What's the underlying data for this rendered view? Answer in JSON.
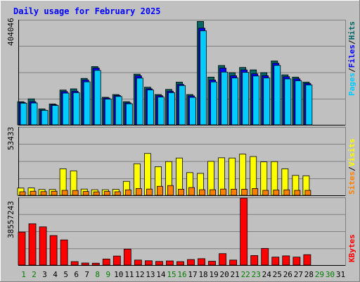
{
  "chart_data": {
    "type": "bar",
    "title": "Daily usage for February 2025",
    "days": [
      "1",
      "2",
      "3",
      "4",
      "5",
      "6",
      "7",
      "8",
      "9",
      "10",
      "11",
      "12",
      "13",
      "14",
      "15",
      "16",
      "17",
      "18",
      "19",
      "20",
      "21",
      "22",
      "23",
      "24",
      "25",
      "26",
      "27",
      "28",
      "29",
      "30",
      "31"
    ],
    "weekend_days": [
      "1",
      "2",
      "8",
      "9",
      "15",
      "16",
      "22",
      "23",
      "29",
      "30"
    ],
    "hits_panel": {
      "max_label": "404046",
      "ylim": [
        0,
        404046
      ],
      "series": [
        {
          "name": "Hits",
          "color": "#006666",
          "values": [
            89500,
            100500,
            61500,
            80600,
            134600,
            139200,
            179600,
            225400,
            106500,
            117200,
            89500,
            196000,
            145600,
            117200,
            137000,
            165300,
            117200,
            400500,
            184700,
            229600,
            201900,
            222100,
            212700,
            201900,
            247300,
            193400,
            184700,
            165300
          ]
        },
        {
          "name": "Files",
          "color": "#0000ff",
          "values": [
            86500,
            89500,
            56800,
            77600,
            128700,
            130000,
            173600,
            219500,
            103500,
            113400,
            84900,
            190000,
            139500,
            112700,
            130000,
            156400,
            111800,
            374100,
            173600,
            219500,
            190000,
            212500,
            197300,
            190000,
            238300,
            186100,
            177900,
            160100
          ]
        },
        {
          "name": "Pages",
          "color": "#00ccff",
          "values": [
            83800,
            84500,
            56000,
            74800,
            122800,
            124400,
            166300,
            210800,
            99300,
            109800,
            81400,
            180700,
            134900,
            107400,
            124400,
            151900,
            106100,
            363900,
            165900,
            204100,
            181400,
            202900,
            189000,
            181400,
            229900,
            177700,
            170400,
            154200
          ]
        }
      ]
    },
    "visits_panel": {
      "max_label": "53433",
      "ylim": [
        0,
        53433
      ],
      "series": [
        {
          "name": "Visits",
          "color": "#ffff00",
          "values": [
            5700,
            5800,
            4600,
            4600,
            20900,
            19300,
            4900,
            4400,
            4400,
            4700,
            11000,
            24900,
            33000,
            22600,
            26600,
            29400,
            17900,
            17300,
            26800,
            29600,
            29400,
            32500,
            30600,
            26400,
            26600,
            20900,
            15700,
            15400
          ]
        },
        {
          "name": "Sites",
          "color": "#ff8000",
          "values": [
            2800,
            3200,
            2900,
            3200,
            3900,
            3800,
            3000,
            2700,
            3000,
            2800,
            4300,
            5300,
            4900,
            7100,
            7700,
            4800,
            6100,
            4400,
            4400,
            4900,
            4800,
            4800,
            5300,
            3900,
            4100,
            4300,
            3900,
            3900
          ]
        }
      ]
    },
    "kbytes_panel": {
      "max_label": "38557243",
      "ylim": [
        0,
        38557243
      ],
      "series": [
        {
          "name": "KBytes",
          "color": "#ff0000",
          "values": [
            19000000,
            23800000,
            22000000,
            17000000,
            14500000,
            2000000,
            1200000,
            1100000,
            3500000,
            5200000,
            9200000,
            2900000,
            2500000,
            2100000,
            2400000,
            2000000,
            3200000,
            3700000,
            2200000,
            6600000,
            2900000,
            38557243,
            5500000,
            9600000,
            4600000,
            5300000,
            4600000,
            6000000
          ]
        }
      ]
    },
    "right_labels": {
      "top": [
        "Pages",
        "Files",
        "Hits"
      ],
      "middle": [
        "Sites",
        "Visits"
      ],
      "bottom": [
        "KBytes"
      ],
      "separator": "/"
    },
    "colors": {
      "frame": "#c0c0c0",
      "plot_bg": "#c0c0c0",
      "title": "#0000ff",
      "weekday": "#000000",
      "weekend": "#007f00"
    }
  }
}
